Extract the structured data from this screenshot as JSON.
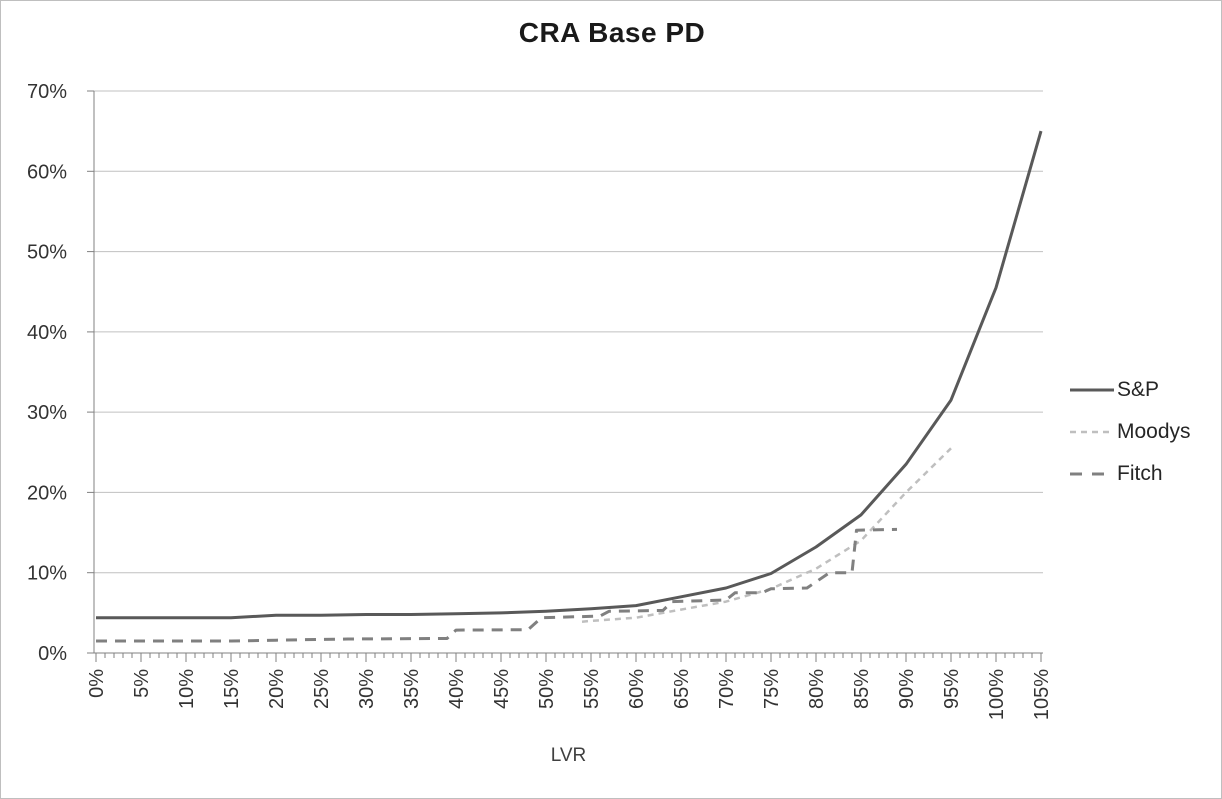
{
  "title": "CRA Base PD",
  "colors": {
    "background": "#ffffff",
    "border": "#bfbfbf",
    "grid": "#c0c0c0",
    "axis": "#808080",
    "tick_text": "#333333",
    "title_text": "#1a1a1a",
    "sp_line": "#595959",
    "moodys_line": "#bfbfbf",
    "fitch_line": "#808080"
  },
  "chart_data": {
    "type": "line",
    "title": "CRA Base PD",
    "xlabel": "LVR",
    "ylabel": "",
    "xlim": [
      0,
      105
    ],
    "ylim": [
      0,
      70
    ],
    "x_tick_step": 5,
    "x_minor_tick_step": 1,
    "y_tick_step": 10,
    "x_tick_labels": [
      "0%",
      "5%",
      "10%",
      "15%",
      "20%",
      "25%",
      "30%",
      "35%",
      "40%",
      "45%",
      "50%",
      "55%",
      "60%",
      "65%",
      "70%",
      "75%",
      "80%",
      "85%",
      "90%",
      "95%",
      "100%",
      "105%"
    ],
    "y_tick_labels": [
      "0%",
      "10%",
      "20%",
      "30%",
      "40%",
      "50%",
      "60%",
      "70%"
    ],
    "grid": "horizontal",
    "legend_position": "right",
    "series": [
      {
        "name": "S&P",
        "line_style": "solid",
        "color": "#595959",
        "stroke_width": 3,
        "x": [
          0,
          5,
          10,
          15,
          20,
          25,
          30,
          35,
          40,
          45,
          50,
          55,
          60,
          65,
          70,
          75,
          80,
          85,
          90,
          95,
          100,
          105
        ],
        "y": [
          4.4,
          4.4,
          4.4,
          4.4,
          4.7,
          4.7,
          4.8,
          4.8,
          4.9,
          5.0,
          5.2,
          5.5,
          5.9,
          7.0,
          8.1,
          9.9,
          13.2,
          17.2,
          23.5,
          31.5,
          45.5,
          65.0
        ]
      },
      {
        "name": "Moodys",
        "line_style": "dashed-short",
        "color": "#bfbfbf",
        "stroke_width": 2.5,
        "x": [
          54,
          55,
          60,
          65,
          70,
          75,
          80,
          85,
          90,
          95
        ],
        "y": [
          3.9,
          4.0,
          4.4,
          5.4,
          6.4,
          8.0,
          10.5,
          14.0,
          20.0,
          25.5
        ]
      },
      {
        "name": "Fitch",
        "line_style": "dashed-long",
        "color": "#808080",
        "stroke_width": 3,
        "x": [
          0,
          15,
          20,
          25,
          28,
          38,
          39,
          40,
          48,
          49.5,
          56,
          57,
          63,
          64,
          70,
          71,
          74,
          75,
          79,
          81.5,
          84,
          84.5,
          89
        ],
        "y": [
          1.5,
          1.5,
          1.6,
          1.7,
          1.75,
          1.8,
          1.8,
          2.85,
          2.9,
          4.4,
          4.6,
          5.2,
          5.3,
          6.4,
          6.6,
          7.5,
          7.5,
          8.0,
          8.1,
          10.0,
          10.0,
          15.3,
          15.4
        ]
      }
    ]
  }
}
